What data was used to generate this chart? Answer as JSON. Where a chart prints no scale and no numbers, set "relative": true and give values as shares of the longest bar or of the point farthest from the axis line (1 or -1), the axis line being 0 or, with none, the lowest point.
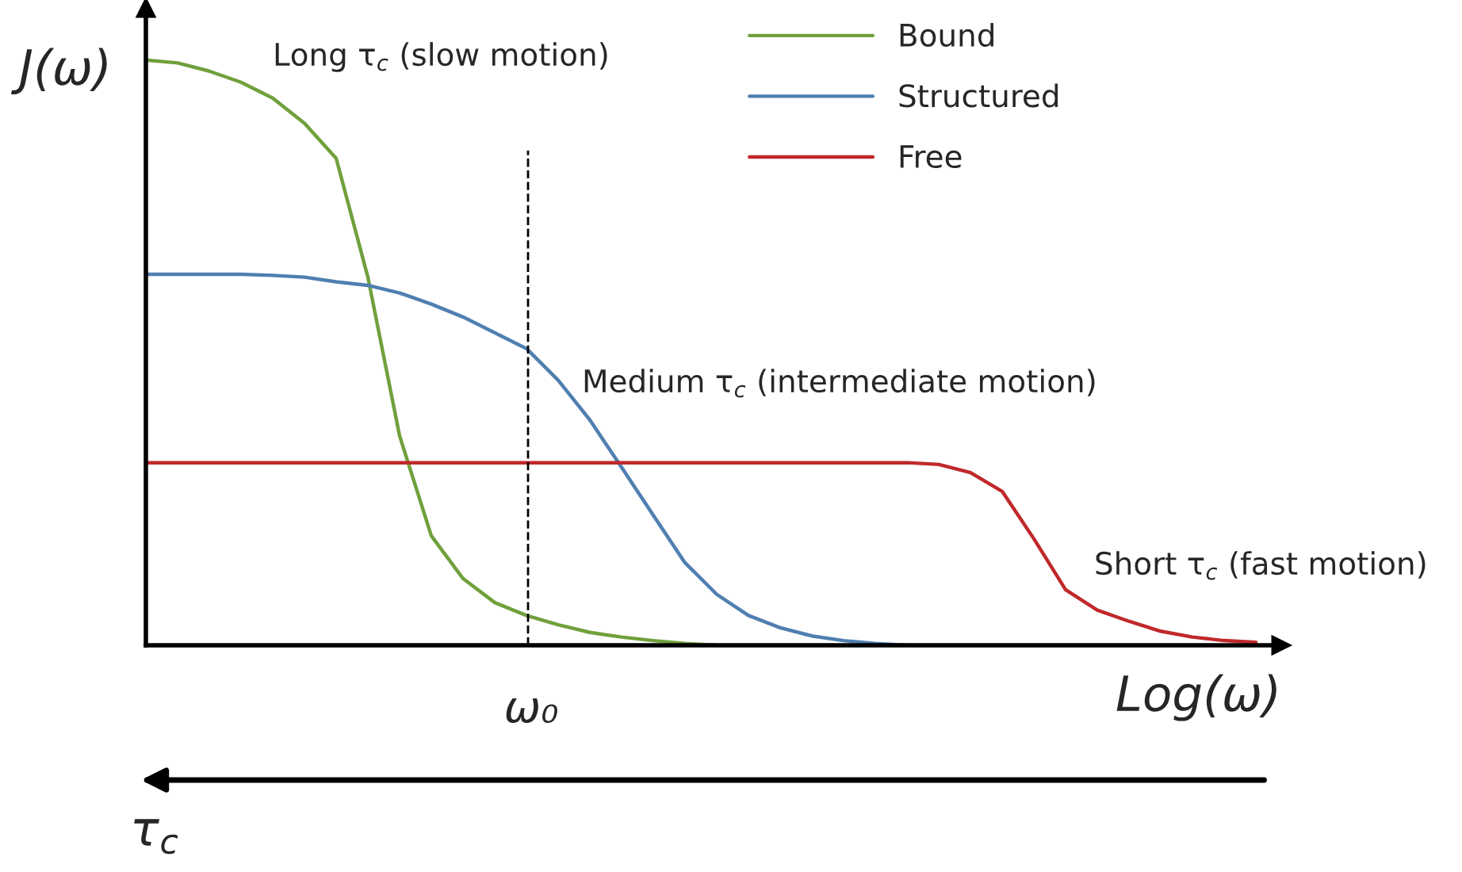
{
  "chart_data": {
    "type": "line",
    "relative": true,
    "ylabel": "J(ω)",
    "xlabel": "Log(ω)",
    "categories": [
      null,
      null,
      null,
      null,
      null,
      null,
      null,
      null,
      null,
      null,
      null,
      null,
      null,
      null,
      null,
      null,
      null,
      null,
      null,
      null,
      null,
      null,
      null,
      null,
      null,
      null,
      null,
      null,
      null,
      null,
      null,
      null,
      null,
      null,
      null,
      null
    ],
    "series": [
      {
        "name": "Bound",
        "color": "#70a03c",
        "values": [
          1.0,
          0.995,
          0.981,
          0.962,
          0.935,
          0.892,
          0.832,
          0.629,
          0.358,
          0.187,
          0.114,
          0.073,
          0.051,
          0.035,
          0.022,
          0.014,
          0.008,
          0.003,
          0,
          null,
          null,
          null,
          null,
          null,
          null,
          null,
          null,
          null,
          null,
          null,
          null,
          null,
          null,
          null,
          null,
          null
        ]
      },
      {
        "name": "Structured",
        "color": "#4f7fb0",
        "values": [
          0.634,
          0.634,
          0.634,
          0.634,
          0.632,
          0.629,
          0.621,
          0.615,
          0.602,
          0.583,
          0.561,
          0.534,
          0.507,
          0.453,
          0.385,
          0.304,
          0.222,
          0.141,
          0.087,
          0.051,
          0.03,
          0.016,
          0.008,
          0.003,
          0,
          null,
          null,
          null,
          null,
          null,
          null,
          null,
          null,
          null,
          null,
          null
        ]
      },
      {
        "name": "Free",
        "color": "#c0282a",
        "values": [
          0.312,
          0.312,
          0.312,
          0.312,
          0.312,
          0.312,
          0.312,
          0.312,
          0.312,
          0.312,
          0.312,
          0.312,
          0.312,
          0.312,
          0.312,
          0.312,
          0.312,
          0.312,
          0.312,
          0.312,
          0.312,
          0.312,
          0.312,
          0.312,
          0.312,
          0.309,
          0.295,
          0.263,
          0.182,
          0.095,
          0.06,
          0.041,
          0.024,
          0.014,
          0.008,
          0.005
        ]
      }
    ],
    "annotations": [
      "Long τ$_{c}$ (slow motion)",
      "Medium τ$_{c}$ (intermediate motion)",
      "Short τ$_{c}$ (fast motion)",
      "τ$_{c}$",
      "ω₀"
    ],
    "legend": "top right",
    "marker": "none",
    "line_style": "solid"
  }
}
